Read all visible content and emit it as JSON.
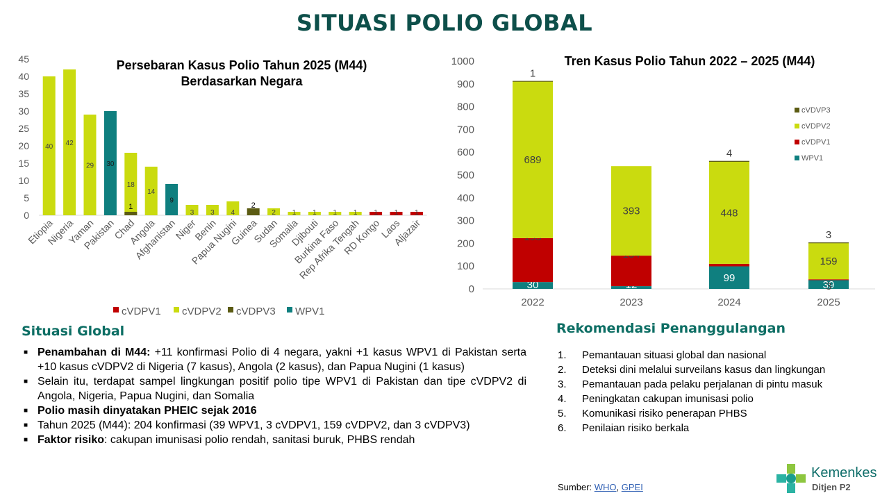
{
  "page": {
    "title": "SITUASI POLIO GLOBAL"
  },
  "colors": {
    "cVDPV1": "#c00000",
    "cVDPV2": "#cadb0f",
    "cVDPV3": "#5b5b13",
    "WPV1": "#0f7f7f",
    "title_teal": "#0d4f4a",
    "section_teal": "#0d6e64"
  },
  "chart_data": [
    {
      "type": "bar",
      "stacked": true,
      "title": "Persebaran Kasus Polio Tahun 2025 (M44) Berdasarkan Negara",
      "title_lines": [
        "Persebaran Kasus Polio Tahun 2025 (M44)",
        "Berdasarkan Negara"
      ],
      "categories": [
        "Etiopia",
        "Nigeria",
        "Yaman",
        "Pakistan",
        "Chad",
        "Angola",
        "Afghanistan",
        "Niger",
        "Benin",
        "Papua Nugini",
        "Guinea",
        "Sudan",
        "Somalia",
        "Djibouti",
        "Burkina Faso",
        "Rep Afrika Tengah",
        "RD Kongo",
        "Laos",
        "Aljazair"
      ],
      "series": [
        {
          "name": "cVDPV1",
          "values": [
            0,
            0,
            0,
            0,
            0,
            0,
            0,
            0,
            0,
            0,
            0,
            0,
            0,
            0,
            0,
            0,
            1,
            1,
            1
          ]
        },
        {
          "name": "cVDPV2",
          "values": [
            40,
            42,
            29,
            0,
            18,
            14,
            0,
            3,
            3,
            4,
            0,
            2,
            1,
            1,
            1,
            1,
            0,
            0,
            0
          ]
        },
        {
          "name": "cVDPV3",
          "values": [
            0,
            0,
            0,
            0,
            1,
            0,
            0,
            0,
            0,
            0,
            2,
            0,
            0,
            0,
            0,
            0,
            0,
            0,
            0
          ]
        },
        {
          "name": "WPV1",
          "values": [
            0,
            0,
            0,
            30,
            0,
            0,
            9,
            0,
            0,
            0,
            0,
            0,
            0,
            0,
            0,
            0,
            0,
            0,
            0
          ]
        }
      ],
      "ylim": [
        0,
        45
      ],
      "yticks": [
        0,
        5,
        10,
        15,
        20,
        25,
        30,
        35,
        40,
        45
      ],
      "xlabel": "",
      "ylabel": "",
      "legend": "bottom",
      "grid": false
    },
    {
      "type": "bar",
      "stacked": true,
      "title": "Tren Kasus Polio Tahun 2022 – 2025 (M44)",
      "categories": [
        "2022",
        "2023",
        "2024",
        "2025"
      ],
      "series": [
        {
          "name": "WPV1",
          "values": [
            30,
            12,
            99,
            39
          ]
        },
        {
          "name": "cVDPV1",
          "values": [
            193,
            134,
            11,
            3
          ]
        },
        {
          "name": "cVDPV2",
          "values": [
            689,
            393,
            448,
            159
          ]
        },
        {
          "name": "cVDPV3",
          "values": [
            1,
            0,
            4,
            3
          ]
        }
      ],
      "ylim": [
        0,
        1000
      ],
      "yticks": [
        0,
        100,
        200,
        300,
        400,
        500,
        600,
        700,
        800,
        900,
        1000
      ],
      "xlabel": "",
      "ylabel": "",
      "legend": "right",
      "legend_order": [
        "cVDVP3",
        "cVDPV2",
        "cVDPV1",
        "WPV1"
      ],
      "grid": false
    }
  ],
  "situasi_global": {
    "heading": "Situasi Global",
    "items": [
      {
        "bold": "Penambahan di M44:",
        "text": " +11 konfirmasi Polio di 4 negara, yakni +1 kasus WPV1 di Pakistan serta +10 kasus cVDPV2 di Nigeria (7 kasus), Angola (2 kasus), dan Papua Nugini (1 kasus)"
      },
      {
        "bold": "",
        "text": "Selain itu, terdapat sampel lingkungan positif polio tipe WPV1 di Pakistan dan tipe cVDPV2 di Angola, Nigeria, Papua Nugini, dan Somalia"
      },
      {
        "bold": "Polio masih dinyatakan PHEIC sejak 2016",
        "text": ""
      },
      {
        "bold": "",
        "text": "Tahun 2025 (M44): 204 konfirmasi (39 WPV1, 3 cVDPV1, 159 cVDPV2, dan 3 cVDPV3)"
      },
      {
        "bold": "Faktor risiko",
        "text": ": cakupan imunisasi polio rendah, sanitasi buruk, PHBS rendah"
      }
    ]
  },
  "rekomendasi": {
    "heading": "Rekomendasi Penanggulangan",
    "items": [
      {
        "num": "1.",
        "text": "Pemantauan situasi global dan nasional"
      },
      {
        "num": "2.",
        "text": "Deteksi dini melalui surveilans kasus dan lingkungan"
      },
      {
        "num": "3.",
        "text": "Pemantauan pada pelaku perjalanan di pintu masuk"
      },
      {
        "num": "4.",
        "text": "Peningkatan cakupan imunisasi polio"
      },
      {
        "num": "5.",
        "text": "Komunikasi risiko penerapan PHBS"
      },
      {
        "num": "6.",
        "text": "Penilaian risiko berkala"
      }
    ]
  },
  "source": {
    "label": "Sumber: ",
    "links": [
      {
        "text": "WHO"
      },
      {
        "text": "GPEI"
      }
    ],
    "separator": ", "
  },
  "logo": {
    "name": "Kemenkes",
    "sub": "Ditjen P2",
    "icon": "kemenkes-logo-icon"
  }
}
